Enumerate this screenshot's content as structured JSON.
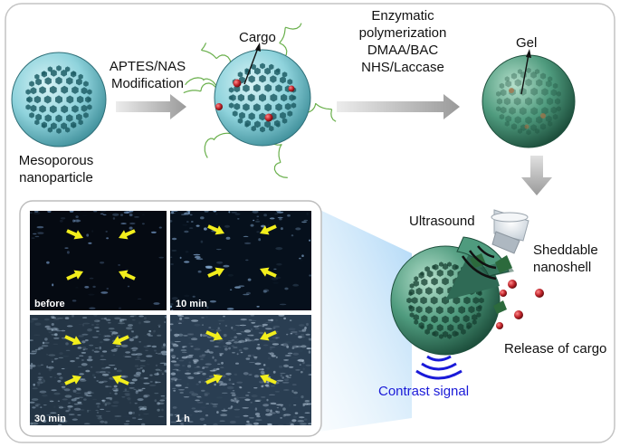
{
  "labels": {
    "mesoporous_line1": "Mesoporous",
    "mesoporous_line2": "nanoparticle",
    "aptes_line1": "APTES/NAS",
    "aptes_line2": "Modification",
    "cargo": "Cargo",
    "enzymatic_line1": "Enzymatic",
    "enzymatic_line2": "polymerization",
    "enzymatic_line3": "DMAA/BAC",
    "enzymatic_line4": "NHS/Laccase",
    "gel": "Gel",
    "ultrasound": "Ultrasound",
    "sheddable_line1": "Sheddable",
    "sheddable_line2": "nanoshell",
    "release": "Release of cargo",
    "contrast": "Contrast signal"
  },
  "panels": [
    {
      "label": "before"
    },
    {
      "label": "10 min"
    },
    {
      "label": "30 min"
    },
    {
      "label": "1 h"
    }
  ],
  "colors": {
    "sphere_bare": "#8fd3dc",
    "sphere_gel": "#4f9b7e",
    "cargo": "#c0242b",
    "polymer": "#6ab04c",
    "arrow_gray": "#a6a6a6",
    "contrast_blue": "#1a1ad8",
    "us_arrow": "#f2ee1c"
  }
}
